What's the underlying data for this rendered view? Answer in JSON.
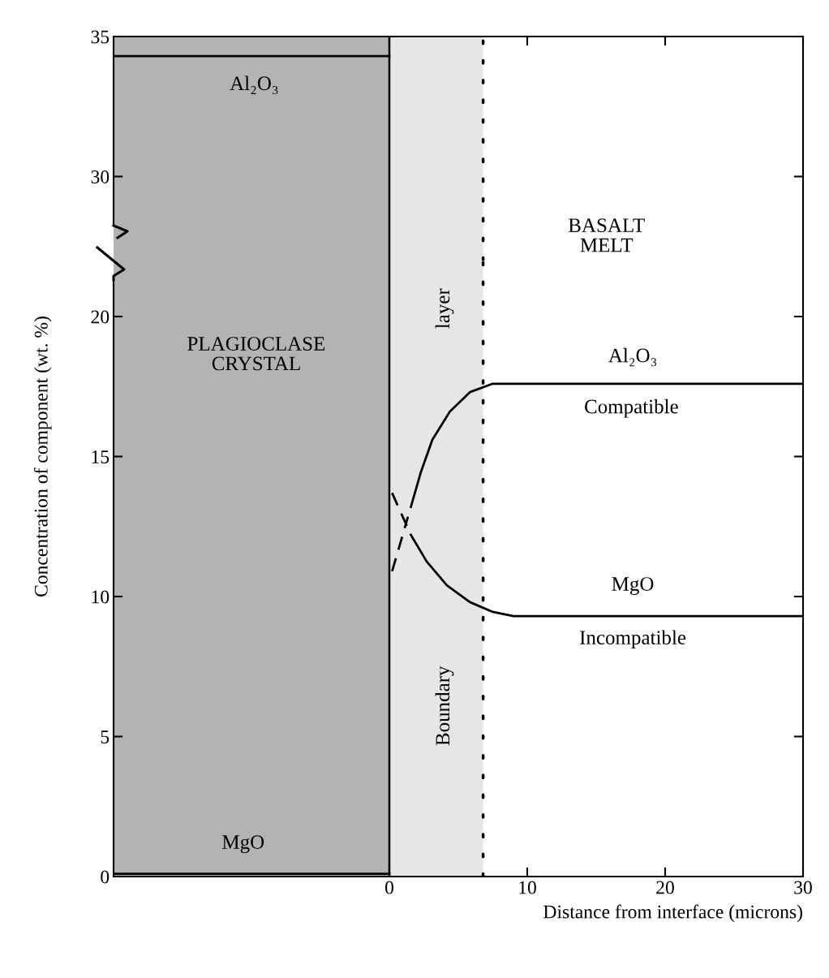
{
  "chart_data": [
    {
      "type": "line",
      "xlim": [
        -20,
        30
      ],
      "xticks": [
        0,
        10,
        20,
        30
      ],
      "ylim": [
        27,
        35
      ],
      "yticks": [
        30,
        35
      ],
      "tick_labels": "y",
      "grid": false,
      "series": [
        {
          "color": "#000000",
          "line_style": "solid",
          "x": [
            -20,
            0
          ],
          "values": [
            34.3,
            34.3
          ]
        }
      ],
      "bands": [
        {
          "axis": "x",
          "from": -20,
          "to": 0,
          "color": "#b3b3b3"
        },
        {
          "axis": "x",
          "from": 0,
          "to": 6.8,
          "color": "#e6e6e6"
        }
      ],
      "ref_lines": [
        {
          "axis": "x",
          "value": 0,
          "color": "#000000",
          "line_style": "solid"
        },
        {
          "axis": "x",
          "value": 6.8,
          "color": "#000000",
          "line_style": "dotted"
        }
      ],
      "annotations": [
        "Al₂O₃",
        "BASALT\nMELT"
      ]
    },
    {
      "type": "line",
      "xlabel": "Distance from interface (microns)",
      "ylabel": "Concentration of component (wt. %)",
      "xlim": [
        -20,
        30
      ],
      "xticks": [
        0,
        10,
        20,
        30
      ],
      "ylim": [
        0,
        22
      ],
      "yticks": [
        0,
        5,
        10,
        15,
        20
      ],
      "grid": false,
      "series": [
        {
          "color": "#000000",
          "line_style": "solid",
          "x": [
            -20,
            0
          ],
          "values": [
            0.1,
            0.1
          ]
        },
        {
          "color": "#000000",
          "line_style": "dashed",
          "x": [
            0.2,
            1.35
          ],
          "values": [
            10.9,
            12.85
          ]
        },
        {
          "color": "#000000",
          "line_style": "solid",
          "x": [
            1.56,
            2.29,
            3.12,
            4.38,
            5.84,
            7.5,
            30
          ],
          "values": [
            13.2,
            14.45,
            15.6,
            16.6,
            17.3,
            17.6,
            17.6
          ]
        },
        {
          "color": "#000000",
          "line_style": "dashed",
          "x": [
            0.2,
            1.56
          ],
          "values": [
            13.7,
            12.2
          ]
        },
        {
          "color": "#000000",
          "line_style": "solid",
          "x": [
            1.56,
            2.71,
            4.17,
            5.84,
            7.5,
            9.0,
            30
          ],
          "values": [
            12.2,
            11.25,
            10.4,
            9.8,
            9.45,
            9.3,
            9.3
          ]
        }
      ],
      "bands": [
        {
          "axis": "x",
          "from": -20,
          "to": 0,
          "color": "#b3b3b3"
        },
        {
          "axis": "x",
          "from": 0,
          "to": 6.8,
          "color": "#e6e6e6"
        }
      ],
      "ref_lines": [
        {
          "axis": "x",
          "value": 0,
          "color": "#000000",
          "line_style": "solid"
        },
        {
          "axis": "x",
          "value": 6.8,
          "color": "#000000",
          "line_style": "dotted"
        }
      ],
      "annotations": [
        "MgO",
        "PLAGIOCLASE\nCRYSTAL",
        "Al₂O₃",
        "Compatible",
        "MgO",
        "Incompatible",
        "layer",
        "Boundary"
      ]
    }
  ]
}
